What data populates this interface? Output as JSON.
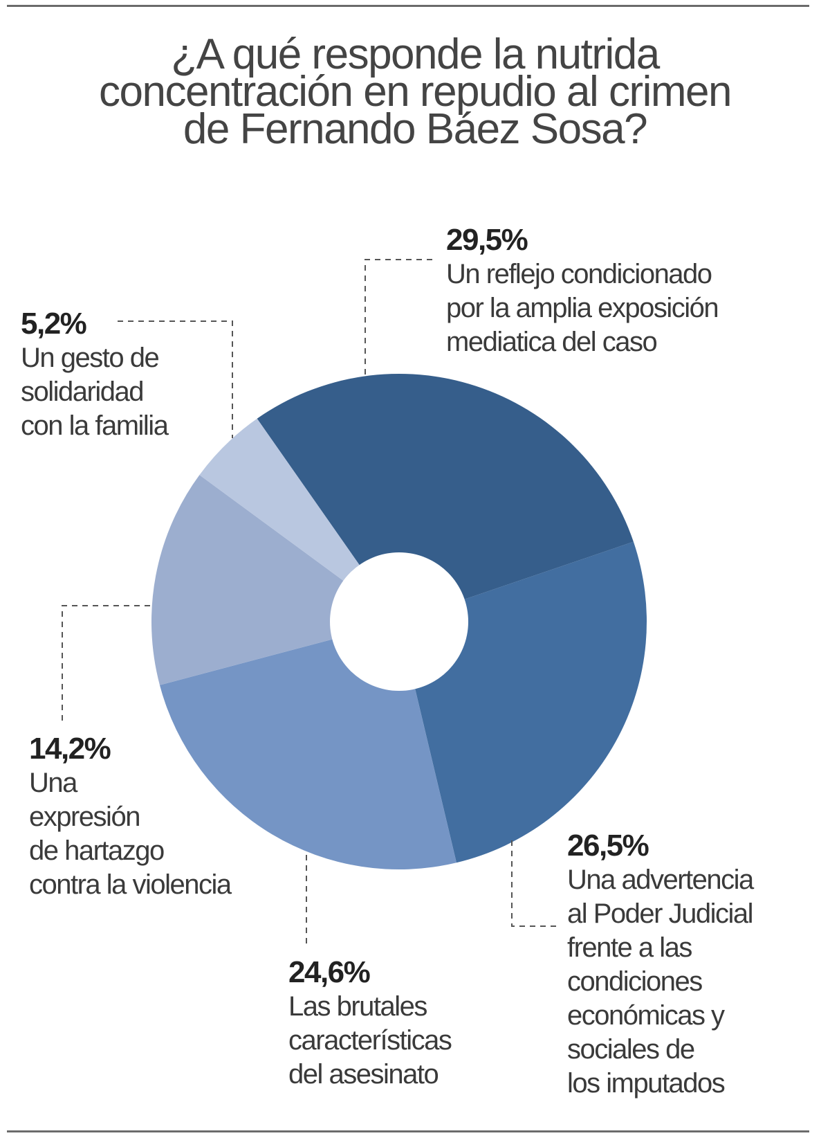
{
  "chart_data": {
    "type": "pie",
    "variant": "donut",
    "title_lines": [
      "¿A qué responde la nutrida",
      "concentración en repudio al crimen",
      "de Fernando Báez Sosa?"
    ],
    "slices": [
      {
        "value": 29.5,
        "label": "29,5%",
        "text_lines": [
          "Un reflejo condicionado",
          "por la amplia exposición",
          "mediatica del caso"
        ],
        "color": "#365e8b"
      },
      {
        "value": 26.5,
        "label": "26,5%",
        "text_lines": [
          "Una advertencia",
          "al Poder Judicial",
          "frente a las",
          "condiciones",
          "económicas y",
          "sociales de",
          "los imputados"
        ],
        "color": "#426ea0"
      },
      {
        "value": 24.6,
        "label": "24,6%",
        "text_lines": [
          "Las brutales",
          "características",
          "del asesinato"
        ],
        "color": "#7595c5"
      },
      {
        "value": 14.2,
        "label": "14,2%",
        "text_lines": [
          "Una",
          "expresión",
          "de hartazgo",
          "contra la violencia"
        ],
        "color": "#9caecf"
      },
      {
        "value": 5.2,
        "label": "5,2%",
        "text_lines": [
          "Un gesto de",
          "solidaridad",
          "con la familia"
        ],
        "color": "#b9c7e0"
      }
    ],
    "legend": "none"
  }
}
